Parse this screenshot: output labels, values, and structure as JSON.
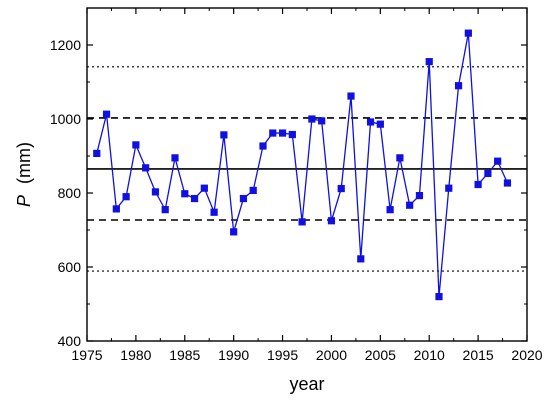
{
  "chart_data": {
    "type": "line",
    "title": "",
    "xlabel": "year",
    "ylabel_symbol": "P",
    "ylabel_unit": "(mm)",
    "xlim": [
      1975,
      2020
    ],
    "ylim": [
      400,
      1300
    ],
    "xticks": [
      1975,
      1980,
      1985,
      1990,
      1995,
      2000,
      2005,
      2010,
      2015,
      2020
    ],
    "yticks": [
      400,
      600,
      800,
      1000,
      1200
    ],
    "grid": false,
    "series": [
      {
        "color": "#1010e0",
        "marker": "square",
        "x": [
          1976,
          1977,
          1978,
          1979,
          1980,
          1981,
          1982,
          1983,
          1984,
          1985,
          1986,
          1987,
          1988,
          1989,
          1990,
          1991,
          1992,
          1993,
          1994,
          1995,
          1996,
          1997,
          1998,
          1999,
          2000,
          2001,
          2002,
          2003,
          2004,
          2005,
          2006,
          2007,
          2008,
          2009,
          2010,
          2011,
          2012,
          2013,
          2014,
          2015,
          2016,
          2017,
          2018
        ],
        "values": [
          907,
          1013,
          757,
          790,
          930,
          868,
          803,
          755,
          895,
          798,
          785,
          813,
          748,
          957,
          695,
          785,
          807,
          927,
          962,
          962,
          958,
          722,
          1000,
          995,
          725,
          812,
          1062,
          622,
          992,
          986,
          755,
          895,
          767,
          793,
          1155,
          520,
          813,
          1090,
          1232,
          823,
          853,
          886,
          827
        ]
      }
    ],
    "reference_lines": [
      {
        "y": 865,
        "style": "solid",
        "color": "#000000"
      },
      {
        "y": 1003,
        "style": "dashed",
        "color": "#000000"
      },
      {
        "y": 727,
        "style": "dashed",
        "color": "#000000"
      },
      {
        "y": 1141,
        "style": "dotted",
        "color": "#000000"
      },
      {
        "y": 589,
        "style": "dotted",
        "color": "#000000"
      }
    ],
    "colors": {
      "series": "#1010e0",
      "axes": "#000000"
    }
  }
}
